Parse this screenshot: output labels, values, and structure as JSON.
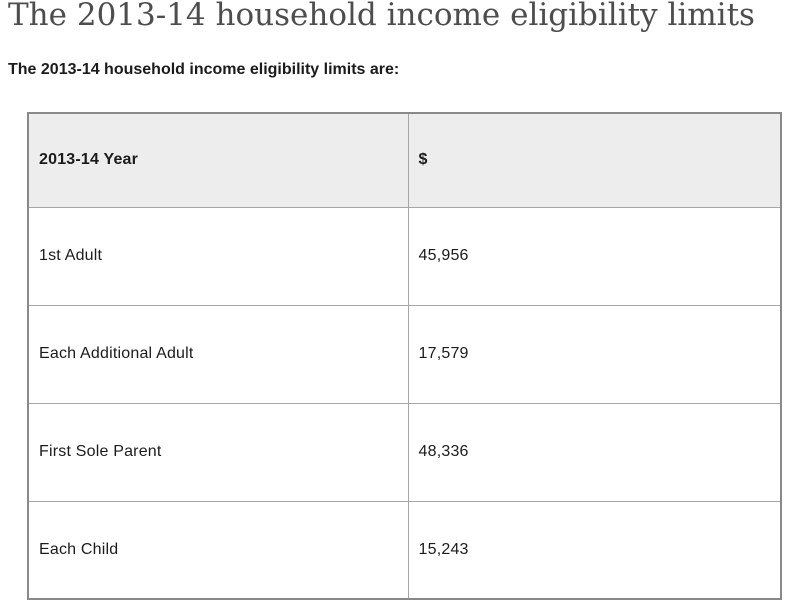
{
  "page": {
    "title": "The 2013-14 household income eligibility limits",
    "intro": "The 2013-14 household income eligibility limits are:"
  },
  "table": {
    "columns": [
      "2013-14 Year",
      "$"
    ],
    "rows": [
      {
        "label": "1st Adult",
        "amount": "45,956"
      },
      {
        "label": "Each Additional Adult",
        "amount": "17,579"
      },
      {
        "label": "First Sole Parent",
        "amount": "48,336"
      },
      {
        "label": "Each Child",
        "amount": "15,243"
      }
    ]
  },
  "colors": {
    "title_text": "#4d4d4d",
    "body_text": "#1b1b1b",
    "header_bg": "#ededed",
    "border_outer": "#898989",
    "border_inner": "#a6a6a6",
    "page_bg": "#ffffff"
  }
}
